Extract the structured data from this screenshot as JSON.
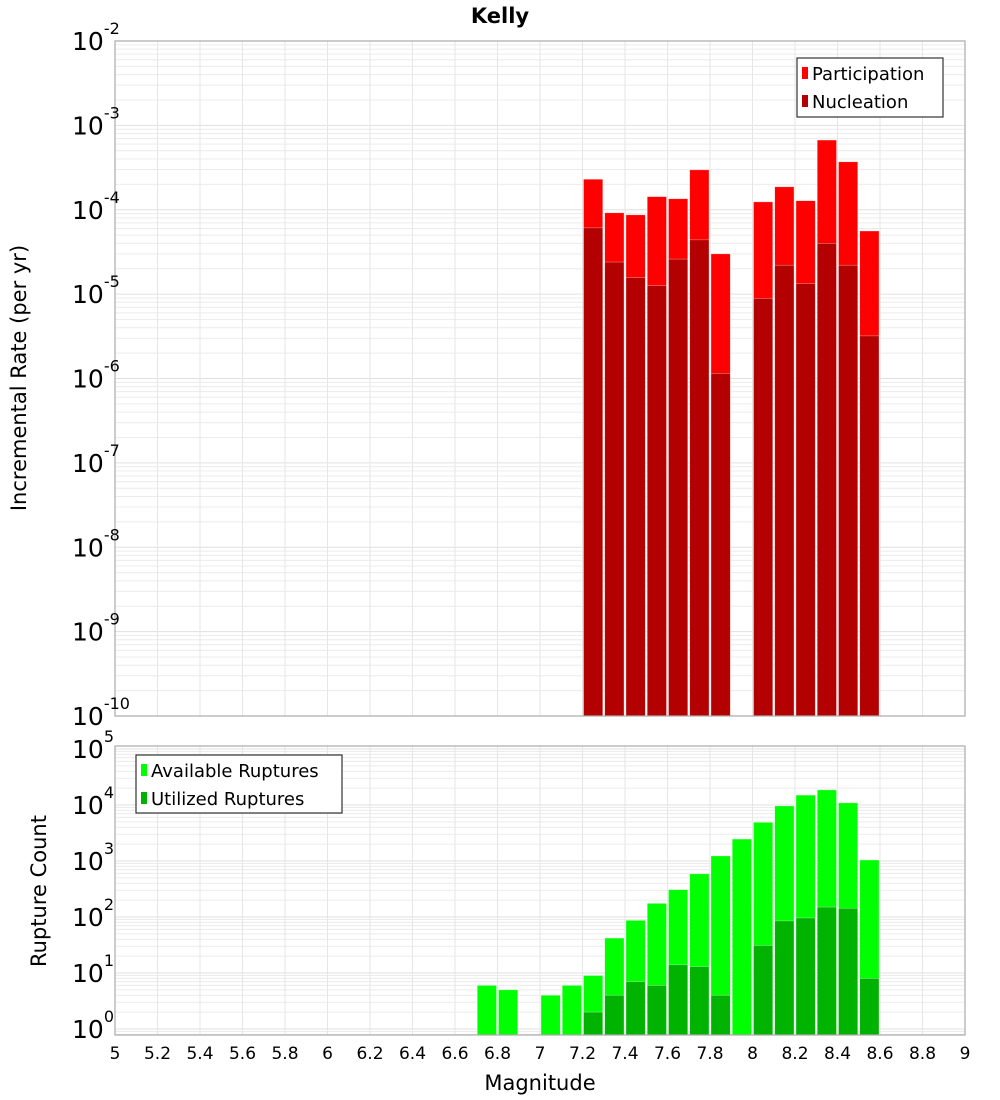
{
  "chart_data": [
    {
      "type": "bar",
      "title": "Kelly",
      "xlabel": "",
      "ylabel": "Incremental Rate (per yr)",
      "yscale": "log",
      "ylim": [
        1e-10,
        0.01
      ],
      "xlim": [
        5,
        9
      ],
      "grid": true,
      "legend_position": "top-right",
      "bar_width": 0.1,
      "x": [
        7.25,
        7.35,
        7.45,
        7.55,
        7.65,
        7.75,
        7.85,
        8.05,
        8.15,
        8.25,
        8.35,
        8.45,
        8.55
      ],
      "series": [
        {
          "name": "Participation",
          "color": "#ff0000",
          "values": [
            0.00023,
            9.2e-05,
            8.7e-05,
            0.000143,
            0.000135,
            0.000297,
            3e-05,
            0.000124,
            0.000187,
            0.000128,
            0.00067,
            0.00037,
            5.6e-05
          ]
        },
        {
          "name": "Nucleation",
          "color": "#b30000",
          "values": [
            6.1e-05,
            2.4e-05,
            1.57e-05,
            1.26e-05,
            2.6e-05,
            4.4e-05,
            1.15e-06,
            8.9e-06,
            2.2e-05,
            1.33e-05,
            4e-05,
            2.2e-05,
            3.2e-06
          ]
        }
      ],
      "ytick_exponents": [
        "-2",
        "-3",
        "-4",
        "-5",
        "-6",
        "-7",
        "-8",
        "-9",
        "-10"
      ]
    },
    {
      "type": "bar",
      "title": "",
      "xlabel": "Magnitude",
      "ylabel": "Rupture Count",
      "yscale": "log",
      "ylim": [
        0.78,
        113000
      ],
      "xlim": [
        5,
        9
      ],
      "grid": true,
      "legend_position": "top-left",
      "bar_width": 0.1,
      "x": [
        6.75,
        6.85,
        7.05,
        7.15,
        7.25,
        7.35,
        7.45,
        7.55,
        7.65,
        7.75,
        7.85,
        7.95,
        8.05,
        8.15,
        8.25,
        8.35,
        8.45,
        8.55
      ],
      "series": [
        {
          "name": "Available Ruptures",
          "color": "#00ff00",
          "values": [
            6,
            5,
            4,
            6,
            9,
            42,
            87,
            175,
            307,
            590,
            1230,
            2460,
            4900,
            9600,
            15000,
            18600,
            10900,
            1040
          ]
        },
        {
          "name": "Utilized Ruptures",
          "color": "#00b300",
          "values": [
            null,
            null,
            null,
            null,
            2,
            4,
            7,
            6,
            14,
            13,
            4,
            null,
            31,
            85,
            96,
            150,
            143,
            8
          ]
        }
      ],
      "ytick_exponents": [
        "5",
        "4",
        "3",
        "2",
        "1",
        "0"
      ],
      "xticks": [
        "5",
        "5.2",
        "5.4",
        "5.6",
        "5.8",
        "6",
        "6.2",
        "6.4",
        "6.6",
        "6.8",
        "7",
        "7.2",
        "7.4",
        "7.6",
        "7.8",
        "8",
        "8.2",
        "8.4",
        "8.6",
        "8.8",
        "9"
      ]
    }
  ],
  "tick_base": "10"
}
